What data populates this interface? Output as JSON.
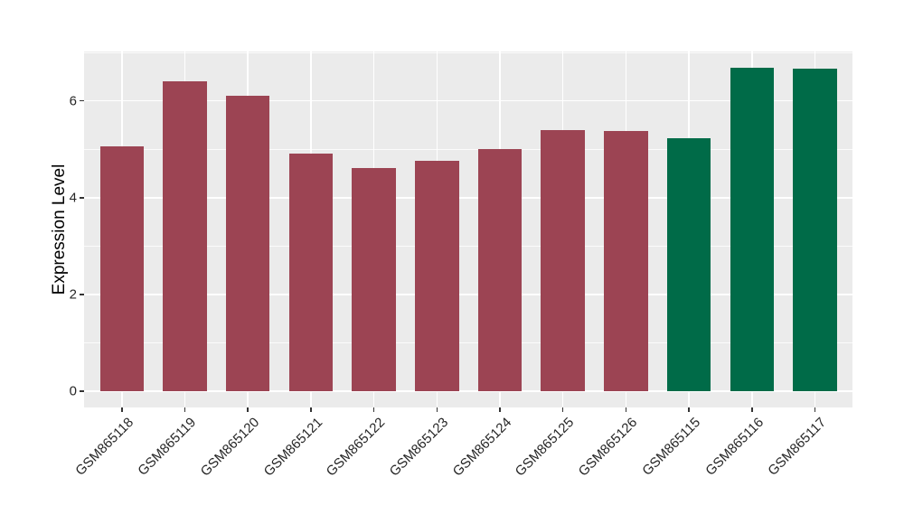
{
  "chart_data": {
    "type": "bar",
    "title": "",
    "xlabel": "",
    "ylabel": "Expression Level",
    "categories": [
      "GSM865118",
      "GSM865119",
      "GSM865120",
      "GSM865121",
      "GSM865122",
      "GSM865123",
      "GSM865124",
      "GSM865125",
      "GSM865126",
      "GSM865115",
      "GSM865116",
      "GSM865117"
    ],
    "values": [
      5.06,
      6.4,
      6.11,
      4.91,
      4.61,
      4.77,
      5.01,
      5.4,
      5.37,
      5.23,
      6.69,
      6.67
    ],
    "bar_colors": [
      "#9C4453",
      "#9C4453",
      "#9C4453",
      "#9C4453",
      "#9C4453",
      "#9C4453",
      "#9C4453",
      "#9C4453",
      "#9C4453",
      "#006B48",
      "#006B48",
      "#006B48"
    ],
    "y_ticks": [
      0,
      2,
      4,
      6
    ],
    "y_minor_ticks": [
      1,
      3,
      5,
      7
    ],
    "ylim": [
      -0.34,
      7.01
    ],
    "grid": true,
    "legend": false,
    "colors": {
      "panel_background": "#EBEBEB",
      "gridline": "#FFFFFF",
      "tick_mark": "#333333",
      "axis_text": "#262626",
      "group_a_red": "#9C4453",
      "group_b_green": "#006B48"
    }
  }
}
